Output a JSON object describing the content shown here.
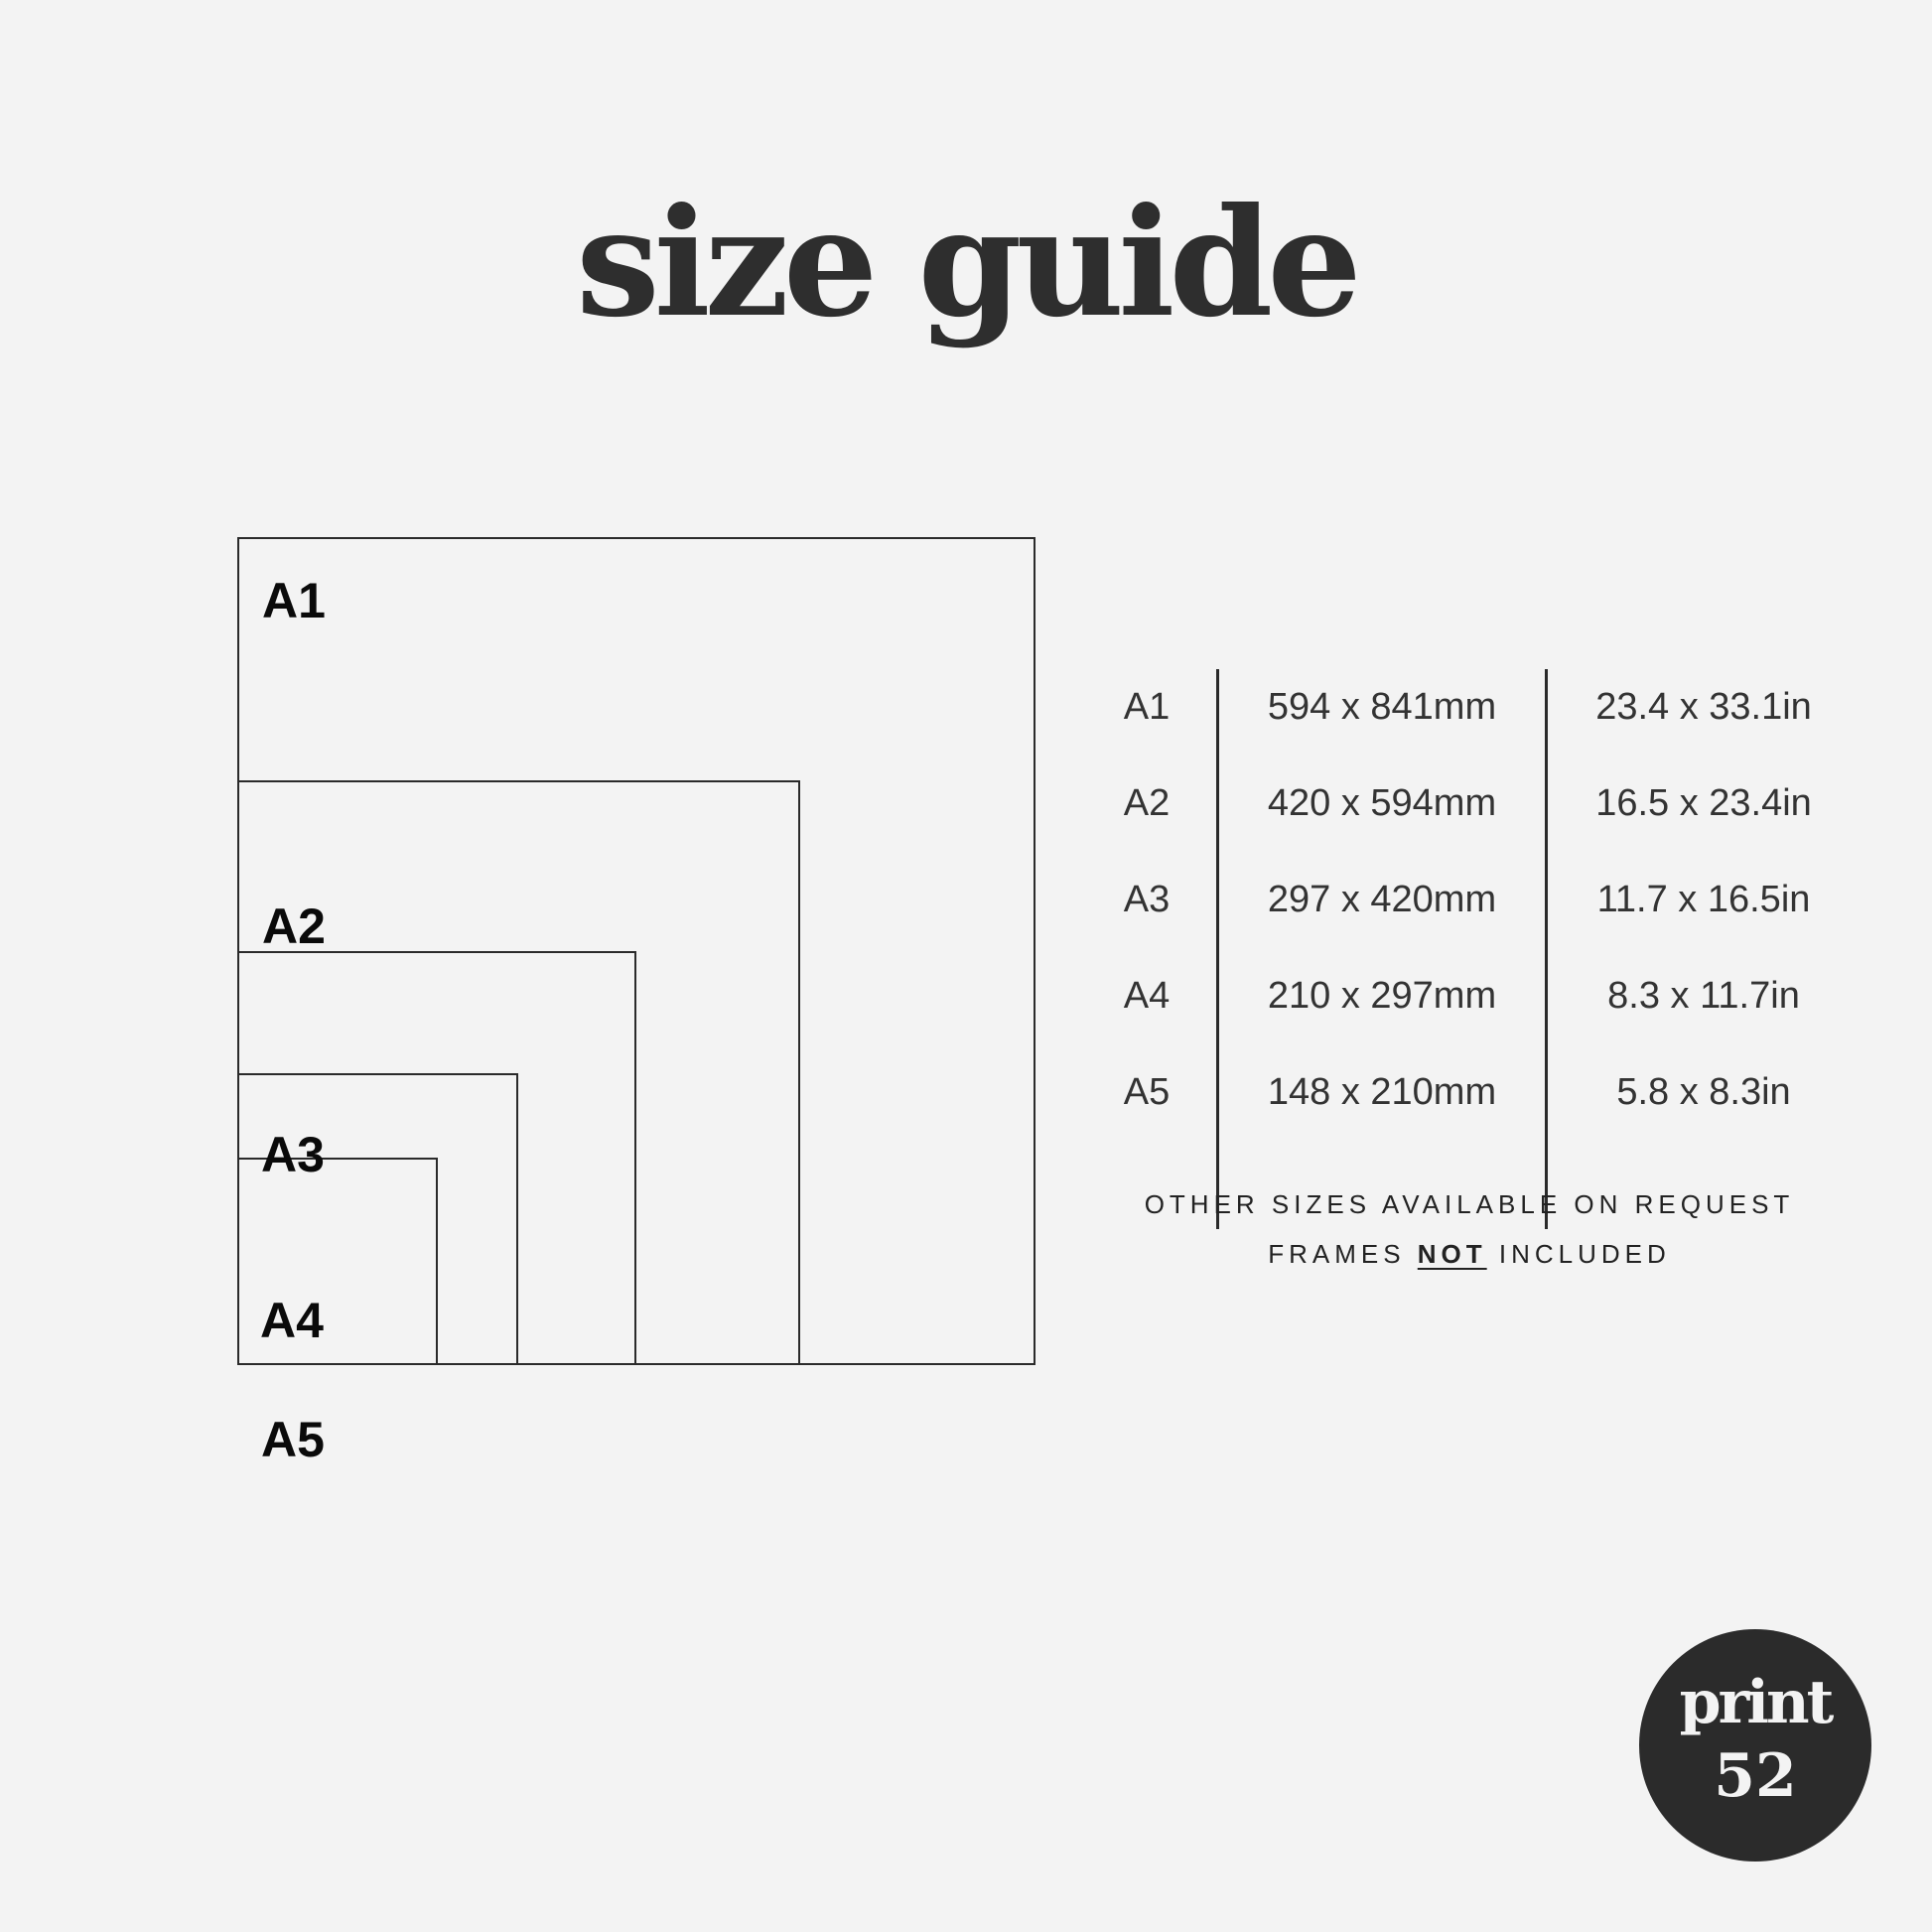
{
  "title": "size guide",
  "diagram": {
    "boxes": [
      {
        "label": "A1"
      },
      {
        "label": "A2"
      },
      {
        "label": "A3"
      },
      {
        "label": "A4"
      },
      {
        "label": "A5"
      }
    ]
  },
  "table": {
    "rows": [
      {
        "size": "A1",
        "mm": "594 x 841mm",
        "in": "23.4 x 33.1in"
      },
      {
        "size": "A2",
        "mm": "420 x 594mm",
        "in": "16.5 x 23.4in"
      },
      {
        "size": "A3",
        "mm": "297 x 420mm",
        "in": "11.7 x 16.5in"
      },
      {
        "size": "A4",
        "mm": "210 x 297mm",
        "in": "8.3 x 11.7in"
      },
      {
        "size": "A5",
        "mm": "148 x 210mm",
        "in": "5.8 x 8.3in"
      }
    ]
  },
  "notes": {
    "line1": "OTHER SIZES AVAILABLE ON REQUEST",
    "line2_prefix": "FRAMES",
    "line2_emphasis": "NOT",
    "line2_suffix": "INCLUDED"
  },
  "logo": {
    "line1": "print",
    "line2": "52"
  },
  "colors": {
    "background": "#f3f3f3",
    "ink": "#2b2b2b"
  }
}
